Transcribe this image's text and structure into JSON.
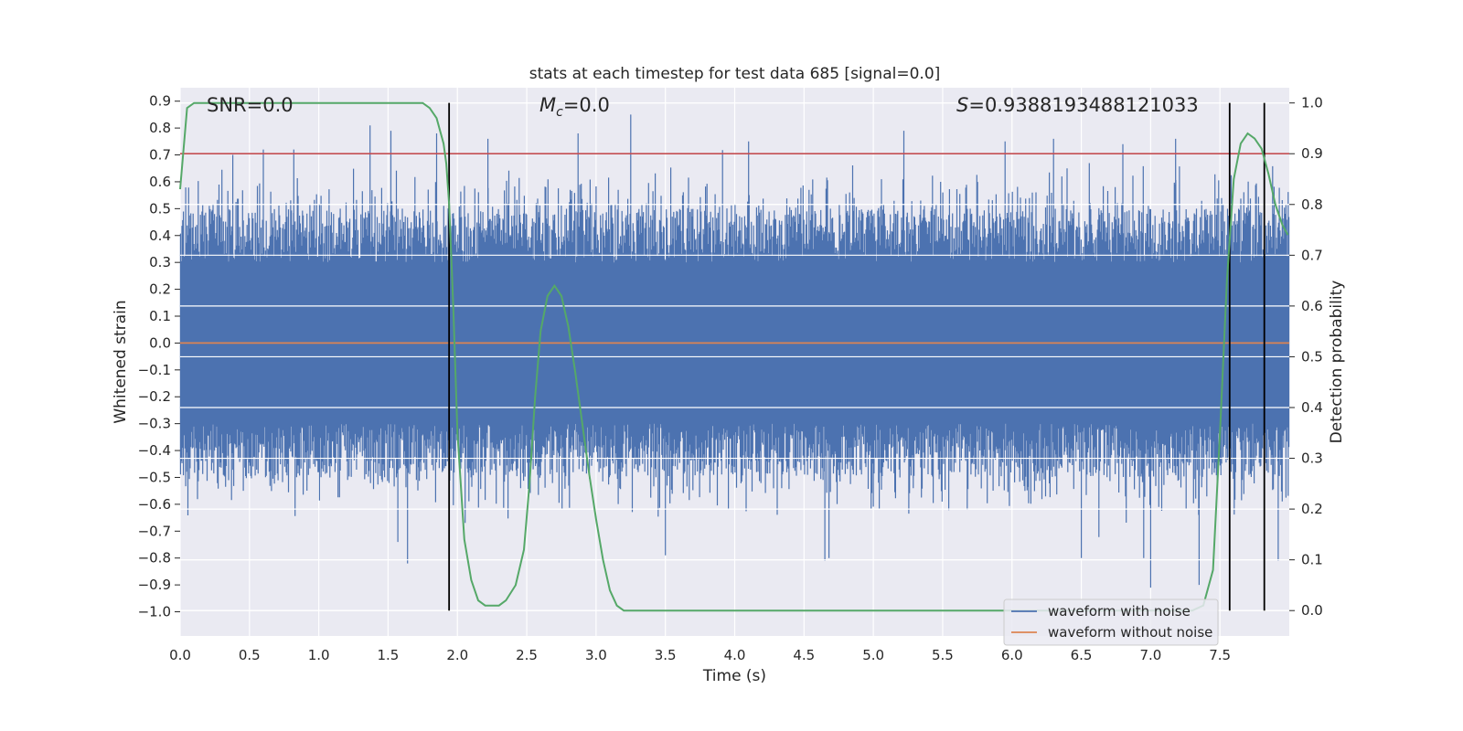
{
  "chart_data": {
    "type": "line",
    "title": "stats at each timestep for test data 685 [signal=0.0]",
    "xlabel": "Time (s)",
    "ylabel": "Whitened strain",
    "y2label": "Detection probability",
    "xlim": [
      0.0,
      8.0
    ],
    "ylim": [
      -1.09,
      0.95
    ],
    "y2lim": [
      -0.05,
      1.03
    ],
    "grid": true,
    "x_ticks": [
      "0.0",
      "0.5",
      "1.0",
      "1.5",
      "2.0",
      "2.5",
      "3.0",
      "3.5",
      "4.0",
      "4.5",
      "5.0",
      "5.5",
      "6.0",
      "6.5",
      "7.0",
      "7.5"
    ],
    "y_ticks": [
      "0.9",
      "0.8",
      "0.7",
      "0.6",
      "0.5",
      "0.4",
      "0.3",
      "0.2",
      "0.1",
      "0.0",
      "-0.1",
      "-0.2",
      "-0.3",
      "-0.4",
      "-0.5",
      "-0.6",
      "-0.7",
      "-0.8",
      "-0.9",
      "-1.0"
    ],
    "y2_ticks": [
      "1.0",
      "0.9",
      "0.8",
      "0.7",
      "0.6",
      "0.5",
      "0.4",
      "0.3",
      "0.2",
      "0.1",
      "0.0"
    ],
    "annotations": {
      "snr": "SNR=0.0",
      "mc_symbol": "M",
      "mc_sub": "c",
      "mc_rest": "=0.0",
      "s_symbol": "S",
      "s_rest": "=0.9388193488121033"
    },
    "legend": {
      "location": "lower-right",
      "entries": [
        "waveform with noise",
        "waveform without noise"
      ]
    },
    "colors": {
      "noise": "#4c72b0",
      "clean": "#dd8452",
      "probability": "#55a868",
      "threshold": "#c44e52",
      "markers": "#000000",
      "background": "#eaeaf2"
    },
    "series": [
      {
        "name": "waveform with noise",
        "axis": "left",
        "style": "noise",
        "band_upper": 0.28,
        "band_lower": -0.28,
        "sample_peaks": [
          {
            "x": 0.38,
            "y": 0.7
          },
          {
            "x": 0.6,
            "y": 0.72
          },
          {
            "x": 0.82,
            "y": 0.72
          },
          {
            "x": 1.37,
            "y": 0.81
          },
          {
            "x": 1.52,
            "y": 0.79
          },
          {
            "x": 1.85,
            "y": 0.78
          },
          {
            "x": 2.22,
            "y": 0.76
          },
          {
            "x": 2.87,
            "y": 0.78
          },
          {
            "x": 3.25,
            "y": 0.85
          },
          {
            "x": 4.1,
            "y": 0.75
          },
          {
            "x": 5.22,
            "y": 0.79
          },
          {
            "x": 5.95,
            "y": 0.75
          },
          {
            "x": 6.3,
            "y": 0.76
          },
          {
            "x": 6.8,
            "y": 0.74
          },
          {
            "x": 7.18,
            "y": 0.76
          },
          {
            "x": 7.82,
            "y": 0.57
          },
          {
            "x": 1.57,
            "y": -0.74
          },
          {
            "x": 1.64,
            "y": -0.82
          },
          {
            "x": 3.5,
            "y": -0.79
          },
          {
            "x": 4.65,
            "y": -0.81
          },
          {
            "x": 4.68,
            "y": -0.8
          },
          {
            "x": 6.5,
            "y": -0.8
          },
          {
            "x": 6.95,
            "y": -0.8
          },
          {
            "x": 7.0,
            "y": -0.91
          },
          {
            "x": 7.35,
            "y": -0.9
          },
          {
            "x": 7.92,
            "y": -0.81
          }
        ]
      },
      {
        "name": "waveform without noise",
        "axis": "left",
        "x": [
          0.0,
          8.0
        ],
        "y": [
          0.0,
          0.0
        ]
      },
      {
        "axis": "right",
        "x": [
          0.0,
          0.05,
          0.1,
          0.15,
          0.5,
          1.0,
          1.5,
          1.75,
          1.8,
          1.85,
          1.9,
          1.92,
          1.94,
          1.97,
          2.0,
          2.05,
          2.1,
          2.15,
          2.2,
          2.25,
          2.3,
          2.35,
          2.42,
          2.48,
          2.52,
          2.56,
          2.6,
          2.65,
          2.7,
          2.75,
          2.8,
          2.85,
          2.9,
          2.95,
          3.0,
          3.05,
          3.1,
          3.15,
          3.2,
          3.3,
          4.0,
          5.0,
          6.0,
          7.0,
          7.3,
          7.38,
          7.45,
          7.5,
          7.55,
          7.6,
          7.65,
          7.7,
          7.75,
          7.8,
          7.85,
          7.9,
          7.95,
          7.99
        ],
        "y": [
          0.83,
          0.99,
          1.0,
          1.0,
          1.0,
          1.0,
          1.0,
          1.0,
          0.99,
          0.97,
          0.92,
          0.88,
          0.8,
          0.6,
          0.35,
          0.14,
          0.06,
          0.02,
          0.01,
          0.01,
          0.01,
          0.02,
          0.05,
          0.12,
          0.25,
          0.42,
          0.55,
          0.62,
          0.64,
          0.62,
          0.56,
          0.47,
          0.37,
          0.27,
          0.18,
          0.1,
          0.04,
          0.01,
          0.0,
          0.0,
          0.0,
          0.0,
          0.0,
          0.0,
          0.0,
          0.01,
          0.08,
          0.35,
          0.65,
          0.85,
          0.92,
          0.94,
          0.93,
          0.91,
          0.86,
          0.8,
          0.76,
          0.74
        ]
      }
    ],
    "threshold_y2": 0.9,
    "vertical_markers_x": [
      1.94,
      7.57,
      7.82
    ]
  }
}
